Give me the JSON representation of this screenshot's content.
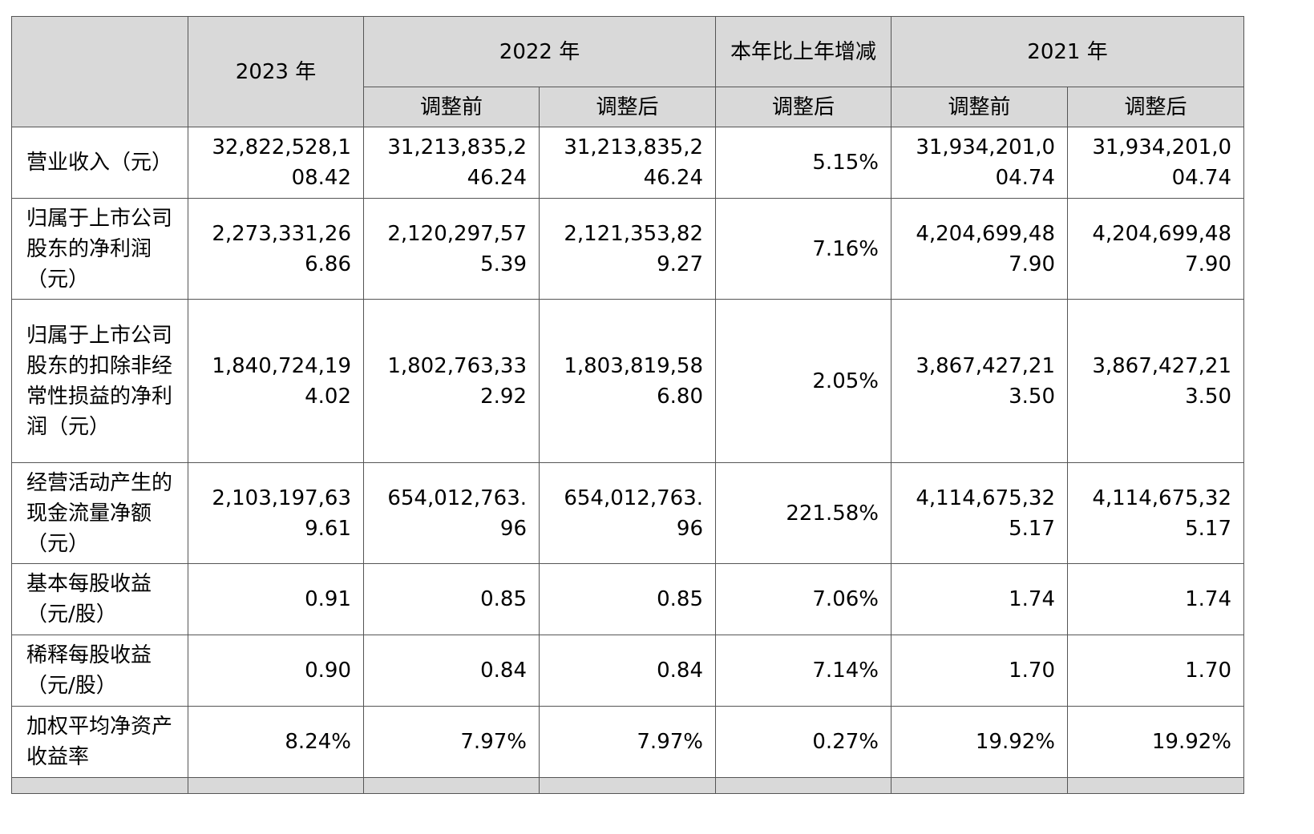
{
  "header": {
    "year_2023": "2023 年",
    "year_2022": "2022 年",
    "yoy_change": "本年比上年增减",
    "year_2021": "2021 年",
    "before_adjust": "调整前",
    "after_adjust": "调整后"
  },
  "rows": [
    {
      "label": "营业收入（元）",
      "v2023": [
        "32,822,528,1",
        "08.42"
      ],
      "v2022_before": [
        "31,213,835,2",
        "46.24"
      ],
      "v2022_after": [
        "31,213,835,2",
        "46.24"
      ],
      "change": "5.15%",
      "v2021_before": [
        "31,934,201,0",
        "04.74"
      ],
      "v2021_after": [
        "31,934,201,0",
        "04.74"
      ]
    },
    {
      "label": "归属于上市公司股东的净利润（元）",
      "v2023": [
        "2,273,331,26",
        "6.86"
      ],
      "v2022_before": [
        "2,120,297,57",
        "5.39"
      ],
      "v2022_after": [
        "2,121,353,82",
        "9.27"
      ],
      "change": "7.16%",
      "v2021_before": [
        "4,204,699,48",
        "7.90"
      ],
      "v2021_after": [
        "4,204,699,48",
        "7.90"
      ]
    },
    {
      "label": "归属于上市公司股东的扣除非经常性损益的净利润（元）",
      "v2023": [
        "1,840,724,19",
        "4.02"
      ],
      "v2022_before": [
        "1,802,763,33",
        "2.92"
      ],
      "v2022_after": [
        "1,803,819,58",
        "6.80"
      ],
      "change": "2.05%",
      "v2021_before": [
        "3,867,427,21",
        "3.50"
      ],
      "v2021_after": [
        "3,867,427,21",
        "3.50"
      ]
    },
    {
      "label": "经营活动产生的现金流量净额（元）",
      "v2023": [
        "2,103,197,63",
        "9.61"
      ],
      "v2022_before": [
        "654,012,763.",
        "96"
      ],
      "v2022_after": [
        "654,012,763.",
        "96"
      ],
      "change": "221.58%",
      "v2021_before": [
        "4,114,675,32",
        "5.17"
      ],
      "v2021_after": [
        "4,114,675,32",
        "5.17"
      ]
    },
    {
      "label": "基本每股收益（元/股）",
      "v2023": [
        "0.91"
      ],
      "v2022_before": [
        "0.85"
      ],
      "v2022_after": [
        "0.85"
      ],
      "change": "7.06%",
      "v2021_before": [
        "1.74"
      ],
      "v2021_after": [
        "1.74"
      ]
    },
    {
      "label": "稀释每股收益（元/股）",
      "v2023": [
        "0.90"
      ],
      "v2022_before": [
        "0.84"
      ],
      "v2022_after": [
        "0.84"
      ],
      "change": "7.14%",
      "v2021_before": [
        "1.70"
      ],
      "v2021_after": [
        "1.70"
      ]
    },
    {
      "label": "加权平均净资产收益率",
      "v2023": [
        "8.24%"
      ],
      "v2022_before": [
        "7.97%"
      ],
      "v2022_after": [
        "7.97%"
      ],
      "change": "0.27%",
      "v2021_before": [
        "19.92%"
      ],
      "v2021_after": [
        "19.92%"
      ]
    }
  ]
}
